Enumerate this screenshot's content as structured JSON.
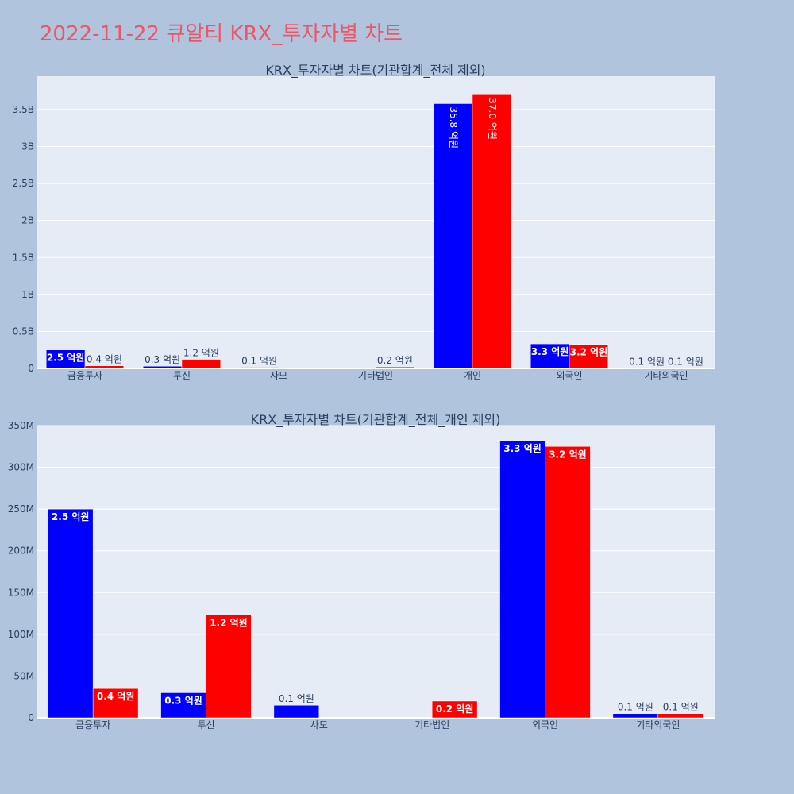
{
  "page": {
    "title": "2022-11-22 큐알티 KRX_투자자별 차트"
  },
  "chart_data": [
    {
      "type": "bar",
      "title": "KRX_투자자별 차트(기관합계_전체 제외)",
      "categories": [
        "금융투자",
        "투신",
        "사모",
        "기타법인",
        "개인",
        "외국인",
        "기타외국인"
      ],
      "ylim": [
        0,
        3950000000
      ],
      "yticks": [
        0,
        500000000,
        1000000000,
        1500000000,
        2000000000,
        2500000000,
        3000000000,
        3500000000
      ],
      "ytick_labels": [
        "0",
        "0.5B",
        "1B",
        "1.5B",
        "2B",
        "2.5B",
        "3B",
        "3.5B"
      ],
      "grid": true,
      "series": [
        {
          "color": "#0000ff",
          "values": [
            250000000,
            30000000,
            15000000,
            null,
            3580000000,
            332000000,
            5000000
          ],
          "labels": [
            "2.5 억원",
            "0.3 억원",
            "0.1 억원",
            "",
            "35.8 억원",
            "3.3 억원",
            "0.1 억원"
          ]
        },
        {
          "color": "#ff0000",
          "values": [
            35000000,
            123000000,
            null,
            20000000,
            3700000000,
            325000000,
            5000000
          ],
          "labels": [
            "0.4 억원",
            "1.2 억원",
            "",
            "0.2 억원",
            "37.0 억원",
            "3.2 억원",
            "0.1 억원"
          ]
        }
      ]
    },
    {
      "type": "bar",
      "title": "KRX_투자자별 차트(기관합계_전체_개인 제외)",
      "categories": [
        "금융투자",
        "투신",
        "사모",
        "기타법인",
        "외국인",
        "기타외국인"
      ],
      "ylim": [
        0,
        350000000
      ],
      "yticks": [
        0,
        50000000,
        100000000,
        150000000,
        200000000,
        250000000,
        300000000,
        350000000
      ],
      "ytick_labels": [
        "0",
        "50M",
        "100M",
        "150M",
        "200M",
        "250M",
        "300M",
        "350M"
      ],
      "grid": true,
      "series": [
        {
          "color": "#0000ff",
          "values": [
            250000000,
            30000000,
            15000000,
            null,
            332000000,
            5000000
          ],
          "labels": [
            "2.5 억원",
            "0.3 억원",
            "0.1 억원",
            "",
            "3.3 억원",
            "0.1 억원"
          ]
        },
        {
          "color": "#ff0000",
          "values": [
            35000000,
            123000000,
            null,
            20000000,
            325000000,
            5000000
          ],
          "labels": [
            "0.4 억원",
            "1.2 억원",
            "",
            "0.2 억원",
            "3.2 억원",
            "0.1 억원"
          ]
        }
      ]
    }
  ]
}
